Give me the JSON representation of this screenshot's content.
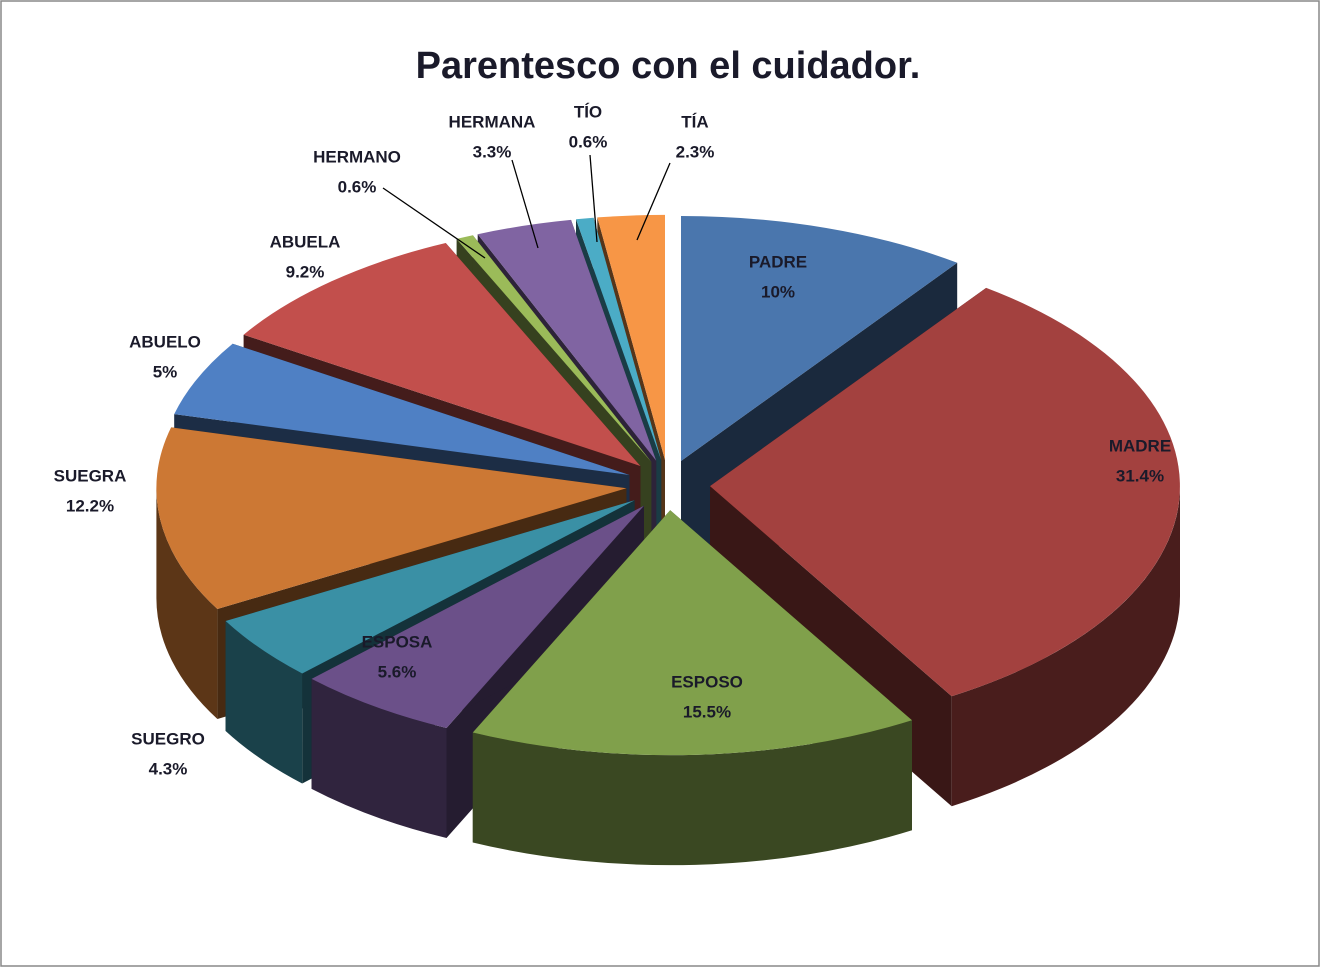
{
  "chart_data": {
    "type": "pie",
    "title": "Parentesco con el cuidador.",
    "categories": [
      "PADRE",
      "MADRE",
      "ESPOSO",
      "ESPOSA",
      "SUEGRO",
      "SUEGRA",
      "ABUELO",
      "ABUELA",
      "HERMANO",
      "HERMANA",
      "TÍO",
      "TÍA"
    ],
    "values": [
      10,
      31.4,
      15.5,
      5.6,
      4.3,
      12.2,
      5,
      9.2,
      0.6,
      3.3,
      0.6,
      2.3
    ],
    "value_labels": [
      "10%",
      "31.4%",
      "15.5%",
      "5.6%",
      "4.3%",
      "12.2%",
      "5%",
      "9.2%",
      "0.6%",
      "3.3%",
      "0.6%",
      "2.3%"
    ],
    "colors": [
      "#4a76ad",
      "#a3413f",
      "#80a04b",
      "#6b5089",
      "#3a90a5",
      "#cc7834",
      "#4f80c4",
      "#c24f4c",
      "#9bbb59",
      "#8064a2",
      "#4bacc6",
      "#f79646"
    ]
  }
}
